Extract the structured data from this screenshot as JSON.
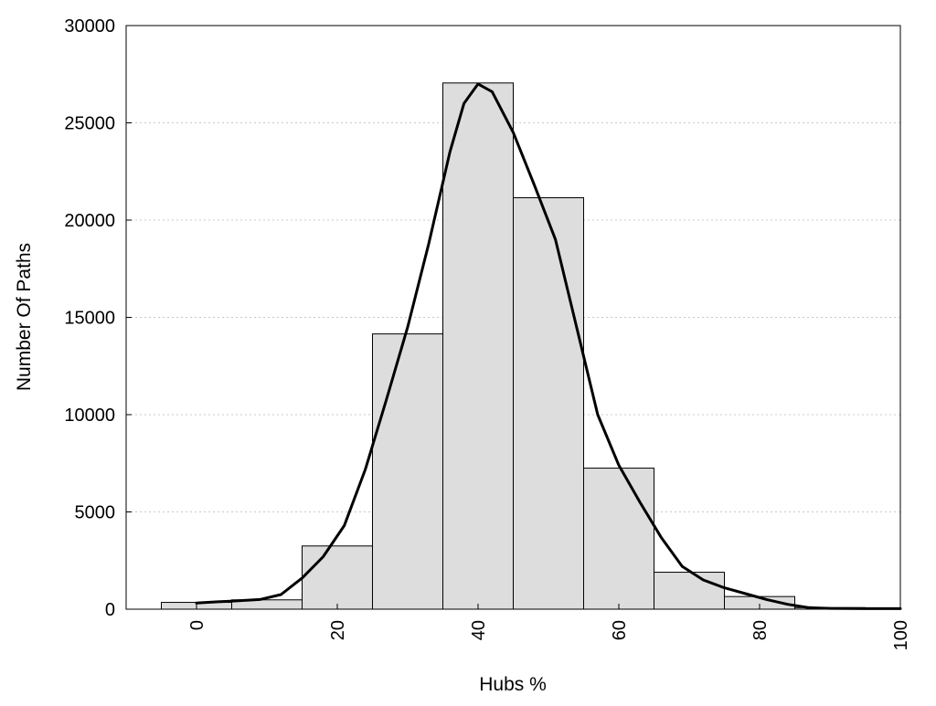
{
  "chart_data": {
    "type": "bar",
    "title": "",
    "xlabel": "Hubs %",
    "ylabel": "Number Of Paths",
    "xlim": [
      -10,
      100
    ],
    "ylim": [
      0,
      30000
    ],
    "grid": "y-dotted",
    "x_ticks": [
      "0",
      "20",
      "40",
      "60",
      "80",
      "100"
    ],
    "y_ticks": [
      "0",
      "5000",
      "10000",
      "15000",
      "20000",
      "25000",
      "30000"
    ],
    "bin_width": 10,
    "bins": [
      {
        "center": 0,
        "value": 350
      },
      {
        "center": 10,
        "value": 480
      },
      {
        "center": 20,
        "value": 3250
      },
      {
        "center": 30,
        "value": 14150
      },
      {
        "center": 40,
        "value": 27050
      },
      {
        "center": 50,
        "value": 21150
      },
      {
        "center": 60,
        "value": 7250
      },
      {
        "center": 70,
        "value": 1900
      },
      {
        "center": 80,
        "value": 650
      },
      {
        "center": 90,
        "value": 80
      },
      {
        "center": 100,
        "value": 50
      }
    ],
    "curve": {
      "type": "line",
      "x": [
        0,
        3,
        6,
        9,
        12,
        15,
        18,
        21,
        24,
        27,
        30,
        33,
        36,
        38,
        40,
        42,
        45,
        48,
        51,
        54,
        57,
        60,
        63,
        66,
        69,
        72,
        75,
        78,
        81,
        84,
        87,
        90,
        95,
        100
      ],
      "y": [
        320,
        380,
        430,
        500,
        750,
        1600,
        2700,
        4300,
        7200,
        10800,
        14500,
        18800,
        23500,
        26000,
        27000,
        26600,
        24500,
        21800,
        19000,
        14500,
        10000,
        7400,
        5500,
        3700,
        2200,
        1500,
        1100,
        800,
        500,
        250,
        80,
        40,
        30,
        30
      ]
    }
  }
}
